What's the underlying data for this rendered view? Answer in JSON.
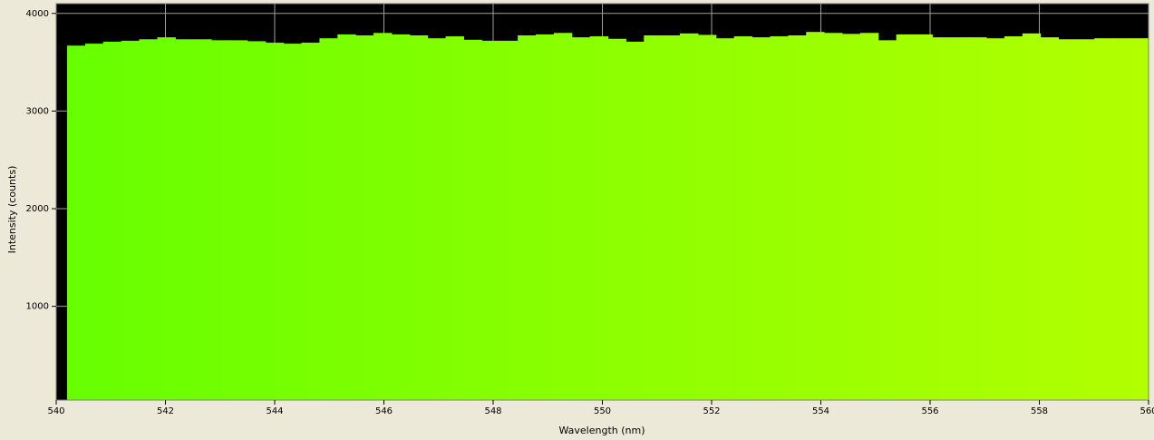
{
  "chart_data": {
    "type": "histogram",
    "xlabel": "Wavelength (nm)",
    "ylabel": "Intensity (counts)",
    "bins": [
      540.2,
      540.53,
      540.86,
      541.19,
      541.52,
      541.85,
      542.18,
      542.51,
      542.84,
      543.17,
      543.5,
      543.83,
      544.16,
      544.49,
      544.82,
      545.15,
      545.48,
      545.81,
      546.14,
      546.47,
      546.8,
      547.13,
      547.46,
      547.79,
      548.12,
      548.45,
      548.78,
      549.11,
      549.44,
      549.77,
      550.1,
      550.43,
      550.76,
      551.09,
      551.42,
      551.75,
      552.08,
      552.41,
      552.74,
      553.07,
      553.4,
      553.73,
      554.06,
      554.39,
      554.72,
      555.05,
      555.38,
      555.71,
      556.04,
      556.37,
      556.7,
      557.03,
      557.36,
      557.69,
      558.02,
      558.35,
      558.68,
      559.01,
      559.34,
      559.67,
      560.0
    ],
    "values": [
      3670,
      3690,
      3710,
      3720,
      3735,
      3755,
      3735,
      3735,
      3725,
      3725,
      3715,
      3700,
      3690,
      3700,
      3745,
      3785,
      3775,
      3800,
      3785,
      3775,
      3745,
      3765,
      3730,
      3720,
      3720,
      3775,
      3785,
      3800,
      3755,
      3765,
      3740,
      3710,
      3775,
      3775,
      3795,
      3780,
      3745,
      3765,
      3755,
      3765,
      3775,
      3810,
      3800,
      3790,
      3800,
      3725,
      3785,
      3785,
      3755,
      3755,
      3755,
      3745,
      3765,
      3795,
      3755,
      3735,
      3735,
      3745,
      3745,
      3745
    ],
    "gradient": [
      "#66ff00",
      "#b2ff00"
    ],
    "background": "#000000",
    "xlim": [
      540,
      560
    ],
    "xticks": [
      540,
      542,
      544,
      546,
      548,
      550,
      552,
      554,
      556,
      558,
      560
    ],
    "ylim": [
      40,
      4100
    ],
    "yticks": [
      1000,
      2000,
      3000,
      4000
    ],
    "grid": true
  }
}
